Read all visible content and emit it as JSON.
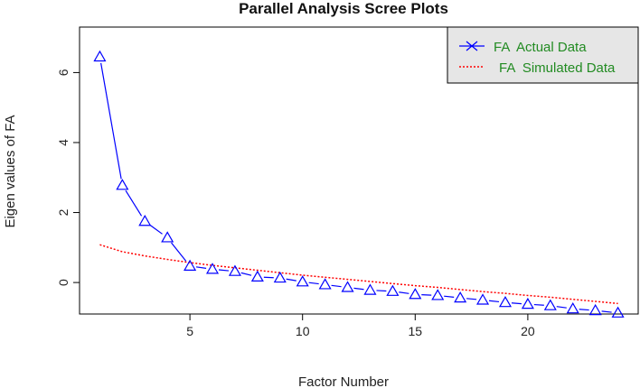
{
  "chart_data": {
    "type": "line",
    "title": "Parallel Analysis Scree Plots",
    "xlabel": "Factor Number",
    "ylabel": "Eigen values of FA",
    "xlim": [
      0.1,
      24.9
    ],
    "ylim": [
      -0.9,
      7.3
    ],
    "xticks": [
      5,
      10,
      15,
      20
    ],
    "yticks": [
      0,
      2,
      4,
      6
    ],
    "grid": false,
    "legend_position": "top-right",
    "x": [
      1,
      2,
      3,
      4,
      5,
      6,
      7,
      8,
      9,
      10,
      11,
      12,
      13,
      14,
      15,
      16,
      17,
      18,
      19,
      20,
      21,
      22,
      23,
      24
    ],
    "series": [
      {
        "name": "FA  Actual Data",
        "color": "#0000ff",
        "marker": "triangle",
        "values": [
          6.45,
          2.78,
          1.75,
          1.28,
          0.47,
          0.38,
          0.32,
          0.16,
          0.13,
          0.02,
          -0.06,
          -0.14,
          -0.22,
          -0.25,
          -0.34,
          -0.37,
          -0.44,
          -0.5,
          -0.57,
          -0.62,
          -0.66,
          -0.75,
          -0.8,
          -0.87
        ]
      },
      {
        "name": "FA  Simulated Data",
        "color": "#ff0000",
        "marker": "none",
        "values": [
          1.08,
          0.88,
          0.76,
          0.66,
          0.57,
          0.49,
          0.42,
          0.35,
          0.28,
          0.21,
          0.15,
          0.09,
          0.03,
          -0.03,
          -0.09,
          -0.14,
          -0.2,
          -0.26,
          -0.31,
          -0.37,
          -0.42,
          -0.48,
          -0.54,
          -0.6
        ]
      }
    ]
  }
}
